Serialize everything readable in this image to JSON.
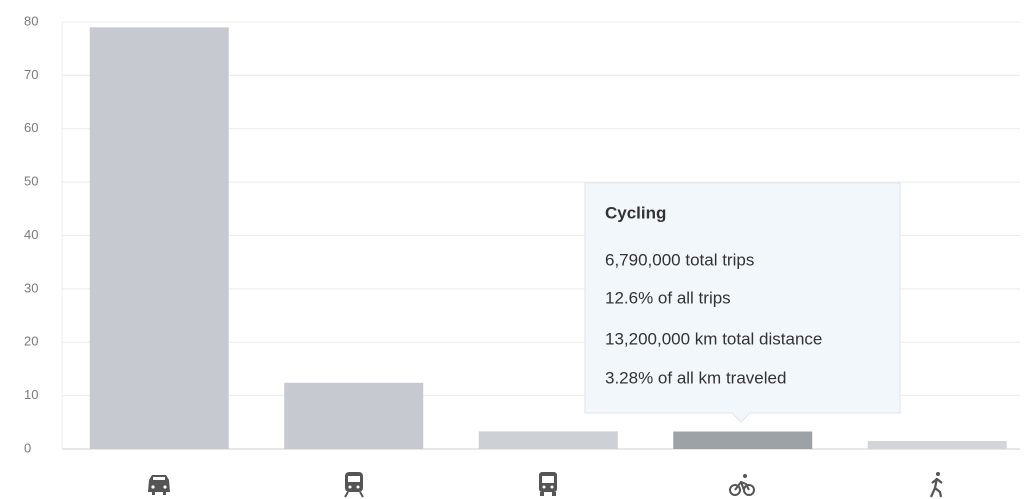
{
  "chart_data": {
    "type": "bar",
    "categories": [
      null,
      null,
      null,
      null,
      null
    ],
    "values": [
      79,
      12.4,
      3.3,
      3.28,
      1.5
    ],
    "colors": [
      "#c6cad0",
      "#c6cad0",
      "#cdd0d4",
      "#9da2a7",
      "#d3d6d9"
    ],
    "ylim": [
      0,
      80
    ],
    "yticks": [
      0,
      10,
      20,
      30,
      40,
      50,
      60,
      70,
      80
    ],
    "grid": true,
    "tooltip": {
      "title": "Cycling",
      "lines": [
        "6,790,000 total trips",
        "12.6% of all trips",
        "13,200,000 km total distance",
        "3.28% of all km traveled"
      ]
    }
  }
}
